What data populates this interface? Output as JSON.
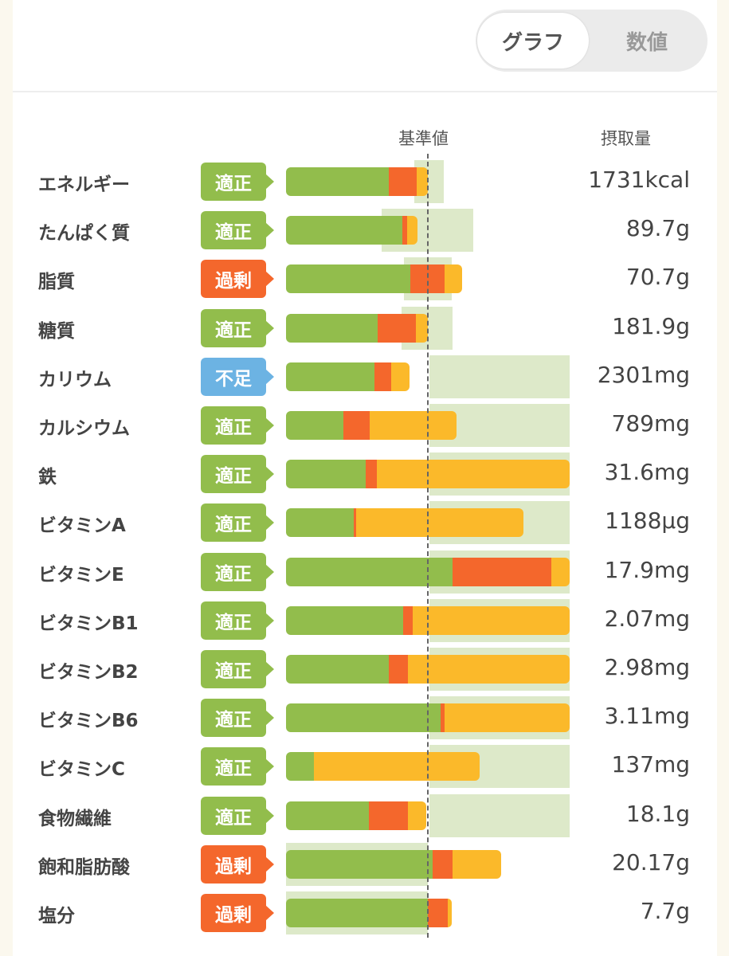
{
  "view_toggle": {
    "options": [
      "グラフ",
      "数値"
    ],
    "selected": "グラフ"
  },
  "headers": {
    "reference": "基準値",
    "intake": "摂取量"
  },
  "colors": {
    "green": "#92bd4c",
    "orange": "#f4672c",
    "yellow": "#fbb92a",
    "band": "#dde9c9",
    "badge_ok": "#92bd4c",
    "badge_over": "#f4672c",
    "badge_under": "#6cb3e3"
  },
  "chart_data": {
    "type": "bar",
    "stacked": true,
    "orientation": "horizontal",
    "xlim": [
      0,
      200
    ],
    "categories": [
      "エネルギー",
      "たんぱく質",
      "脂質",
      "糖質",
      "カリウム",
      "カルシウム",
      "鉄",
      "ビタミンA",
      "ビタミンE",
      "ビタミンB1",
      "ビタミンB2",
      "ビタミンB6",
      "ビタミンC",
      "食物繊維",
      "飽和脂肪酸",
      "塩分"
    ],
    "status": [
      "適正",
      "適正",
      "過剰",
      "適正",
      "不足",
      "適正",
      "適正",
      "適正",
      "適正",
      "適正",
      "適正",
      "適正",
      "適正",
      "適正",
      "過剰",
      "過剰"
    ],
    "intake": [
      "1731kcal",
      "89.7g",
      "70.7g",
      "181.9g",
      "2301mg",
      "789mg",
      "31.6mg",
      "1188μg",
      "17.9mg",
      "2.07mg",
      "2.98mg",
      "3.11mg",
      "137mg",
      "18.1g",
      "20.17g",
      "7.7g"
    ],
    "segment_ends": [
      [
        72.5,
        92,
        100
      ],
      [
        82,
        85.4,
        92.7
      ],
      [
        87.6,
        111.8,
        124.2
      ],
      [
        64.6,
        91.6,
        100
      ],
      [
        62.4,
        74.2,
        87.1
      ],
      [
        40.4,
        59,
        120.2
      ],
      [
        56.2,
        64,
        200
      ],
      [
        47.8,
        49.4,
        167.4
      ],
      [
        117.4,
        187.1,
        200
      ],
      [
        82.6,
        89.3,
        200
      ],
      [
        72.5,
        86,
        200
      ],
      [
        109,
        111.8,
        200
      ],
      [
        19.7,
        19.7,
        136.5
      ],
      [
        58.4,
        86,
        98.9
      ],
      [
        103.4,
        117.4,
        151.7
      ],
      [
        100,
        114,
        116.9
      ]
    ],
    "target_range": [
      [
        90.4,
        111.2
      ],
      [
        67.4,
        132
      ],
      [
        83.1,
        116.9
      ],
      [
        81.5,
        117.4
      ],
      [
        101,
        200
      ],
      [
        101,
        200
      ],
      [
        101,
        200
      ],
      [
        101,
        200
      ],
      [
        101,
        200
      ],
      [
        101,
        200
      ],
      [
        101,
        200
      ],
      [
        101,
        200
      ],
      [
        101,
        200
      ],
      [
        101,
        200
      ],
      [
        0,
        100
      ],
      [
        0,
        100
      ]
    ],
    "reference_line": 100
  }
}
